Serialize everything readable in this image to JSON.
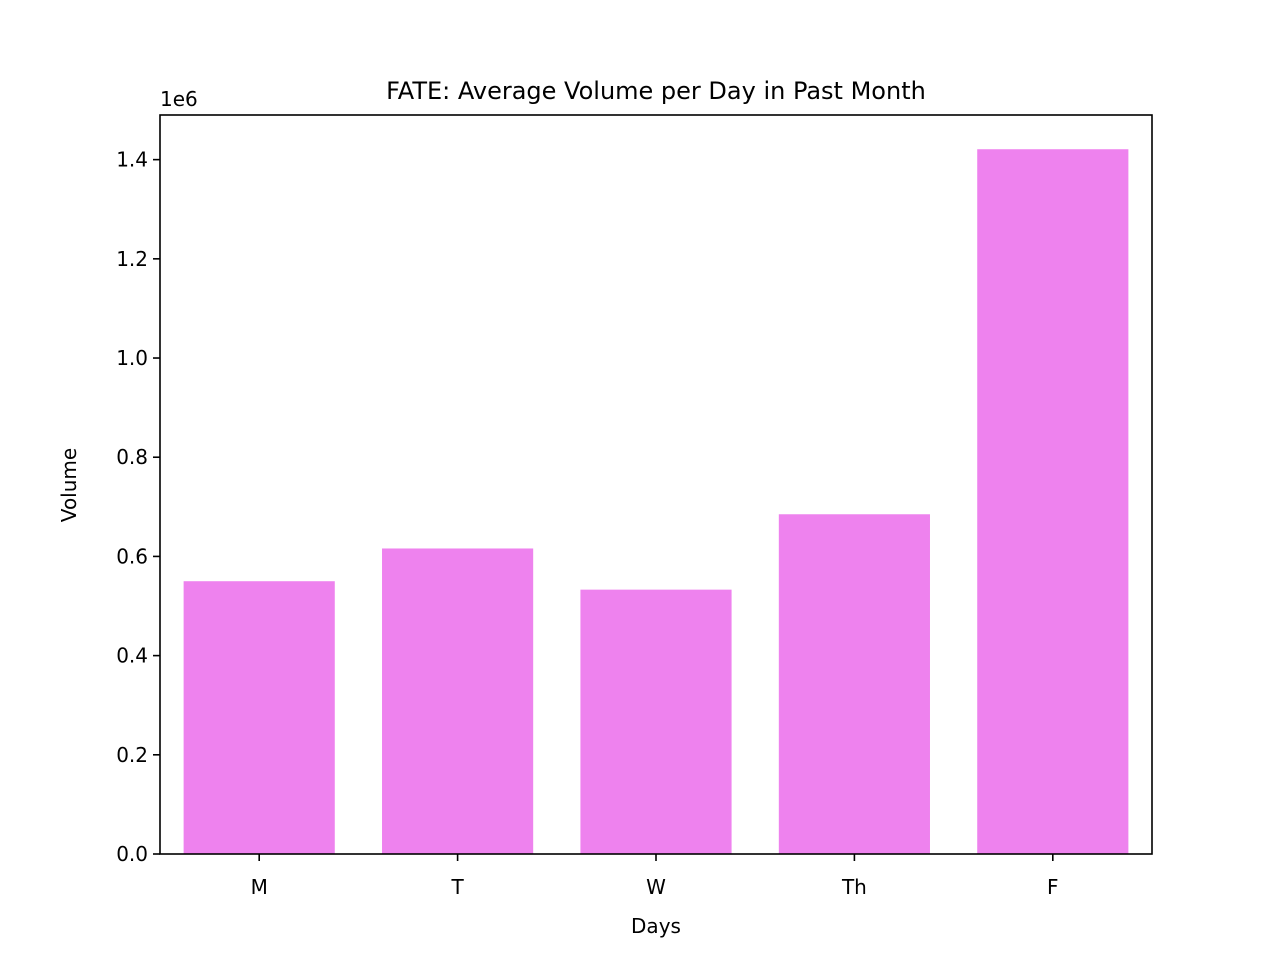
{
  "chart_data": {
    "type": "bar",
    "title": "FATE: Average Volume per Day in Past Month",
    "xlabel": "Days",
    "ylabel": "Volume",
    "y_offset_label": "1e6",
    "categories": [
      "M",
      "T",
      "W",
      "Th",
      "F"
    ],
    "values": [
      550000,
      616000,
      533000,
      685000,
      1421000
    ],
    "ylim": [
      0,
      1490000
    ],
    "yticks": [
      0,
      200000,
      400000,
      600000,
      800000,
      1000000,
      1200000,
      1400000
    ],
    "ytick_labels": [
      "0.0",
      "0.2",
      "0.4",
      "0.6",
      "0.8",
      "1.0",
      "1.2",
      "1.4"
    ],
    "bar_color": "#ee82ee",
    "grid": false,
    "legend": "none"
  }
}
